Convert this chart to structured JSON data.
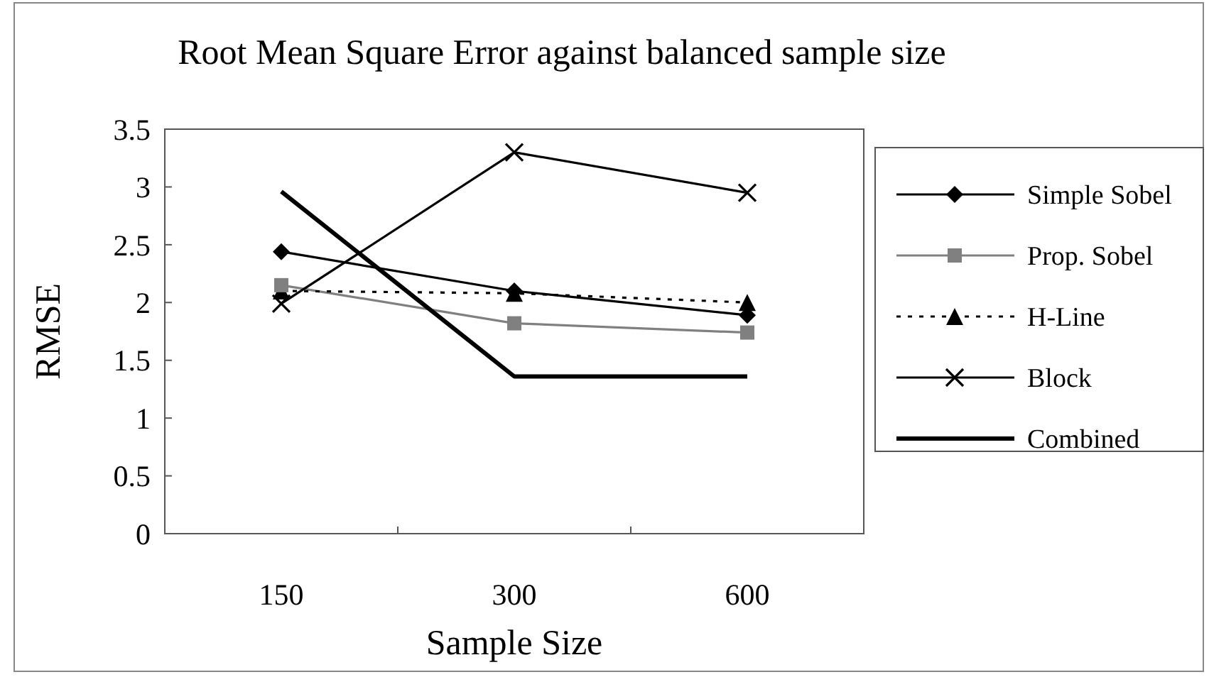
{
  "chart_data": {
    "type": "line",
    "title": "Root Mean Square Error against balanced sample size",
    "xlabel": "Sample Size",
    "ylabel": "RMSE",
    "categories": [
      "150",
      "300",
      "600"
    ],
    "ylim": [
      0,
      3.5
    ],
    "yticks": [
      0,
      0.5,
      1,
      1.5,
      2,
      2.5,
      3,
      3.5
    ],
    "legend": "right",
    "grid": false,
    "series": [
      {
        "name": "Simple Sobel",
        "color": "#000000",
        "marker": "diamond",
        "line_style": "solid",
        "values": [
          2.44,
          2.1,
          1.89
        ]
      },
      {
        "name": "Prop. Sobel",
        "color": "#808080",
        "marker": "square",
        "line_style": "solid",
        "values": [
          2.15,
          1.82,
          1.74
        ]
      },
      {
        "name": "H-Line",
        "color": "#000000",
        "marker": "triangle",
        "line_style": "dotted",
        "values": [
          2.1,
          2.08,
          2.0
        ]
      },
      {
        "name": "Block",
        "color": "#000000",
        "marker": "cross",
        "line_style": "solid",
        "values": [
          1.99,
          3.3,
          2.95
        ]
      },
      {
        "name": "Combined",
        "color": "#000000",
        "marker": "none",
        "line_style": "solid",
        "values": [
          2.96,
          1.36,
          1.36
        ]
      }
    ]
  }
}
